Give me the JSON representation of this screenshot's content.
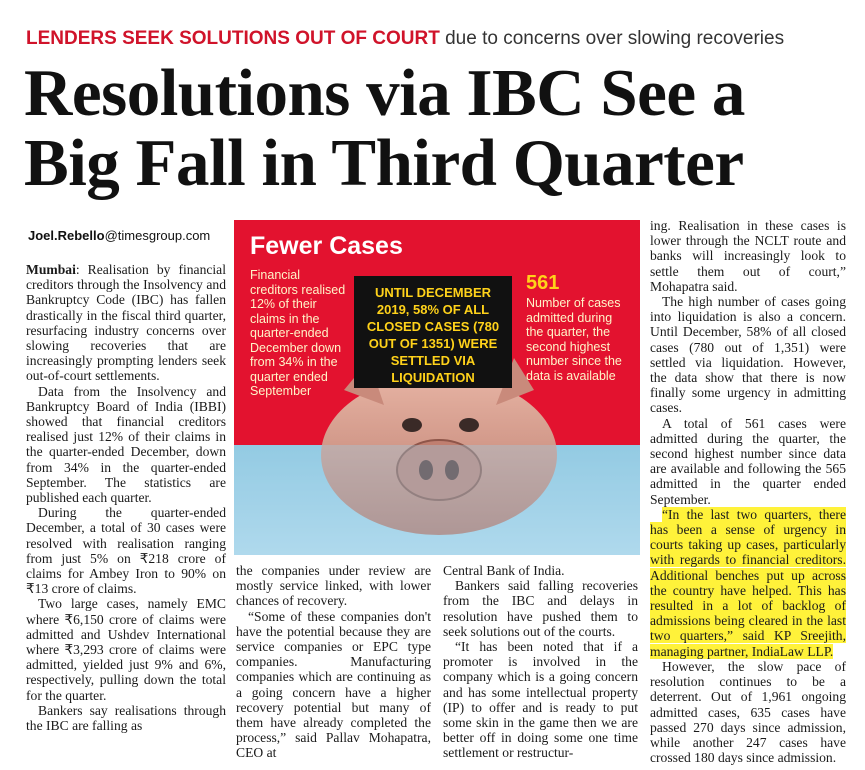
{
  "kicker": {
    "red": "LENDERS SEEK SOLUTIONS OUT OF COURT",
    "grey": "due to concerns over slowing recoveries"
  },
  "headline": "Resolutions via IBC See a Big Fall in Third Quarter",
  "byline": {
    "name": "Joel.Rebello",
    "domain": "@timesgroup.com"
  },
  "graphic": {
    "title": "Fewer Cases",
    "left_text": "Financial creditors realised 12% of their claims in the quarter-ended December down from 34% in the quarter ended September",
    "center_text": "UNTIL DECEMBER 2019, 58% OF ALL CLOSED CASES (780 OUT OF 1351) WERE SETTLED VIA LIQUIDATION",
    "right_number": "561",
    "right_text": "Number of cases admitted during the quarter, the second highest number since the data is available",
    "colors": {
      "red": "#e3122f",
      "yellow": "#ffd21a",
      "water": "#9fd1e8",
      "pig": "#d9a08e"
    },
    "illustration": "piggy-bank-sinking-in-water"
  },
  "col1": {
    "dateline": "Mumbai",
    "p1": ": Realisation by financial creditors through the Insolvency and Bankruptcy Code (IBC) has fallen drastically in the fiscal third quarter, resurfacing industry concerns over slowing recoveries that are increasingly prompting lenders seek out-of-court settlements.",
    "p2": "Data from the Insolvency and Bankruptcy Board of India (IBBI) showed that financial creditors realised just 12% of their claims in the quarter-ended December, down from 34% in the quarter-ended September. The statistics are published each quarter.",
    "p3": "During the quarter-ended December, a total of 30 cases were resolved with realisation ranging from just 5% on ₹218 crore of claims for Ambey Iron to 90% on ₹13 crore of claims.",
    "p4": "Two large cases, namely EMC where ₹6,150 crore of claims were admitted and Ushdev International where ₹3,293 crore of claims were admitted, yielded just 9% and 6%, respectively, pulling down the total for the quarter.",
    "p5": "Bankers say realisations through the IBC are falling as"
  },
  "col2": {
    "p1": "the companies under review are mostly service linked, with lower chances of recovery.",
    "p2": "“Some of these companies don't have the potential because they are service companies or EPC type companies. Manufacturing companies which are continuing as a going concern have a higher recovery potential but many of them have already completed the process,” said Pallav Mohapatra, CEO at"
  },
  "col3": {
    "p1": "Central Bank of India.",
    "p2": "Bankers said falling recoveries from the IBC and delays in resolution have pushed them to seek solutions out of the courts.",
    "p3": "“It has been noted that if a promoter is involved in the company which is a going concern and has some intellectual property (IP) to offer and is ready to put some skin in the game then we are better off in doing some one time settlement or restructur-"
  },
  "col4": {
    "p1": "ing. Realisation in these cases is lower through the NCLT route and banks will increasingly look to settle them out of court,” Mohapatra said.",
    "p2": "The high number of cases going into liquidation is also a concern. Until December, 58% of all closed cases (780 out of 1,351) were settled via liquidation. However, the data show that there is now finally some urgency in admitting cases.",
    "p3": "A total of 561 cases were admitted during the quarter, the second highest number since data are available and following the 565 admitted in the quarter ended September.",
    "p4": "“In the last two quarters, there has been a sense of urgency in courts taking up cases, particularly with regards to financial creditors. Additional benches put up across the country have helped. This has resulted in a lot of backlog of admissions being cleared in the last two quarters,” said KP Sreejith, managing partner, IndiaLaw LLP.",
    "p5": "However, the slow pace of resolution continues to be a deterrent. Out of 1,961 ongoing admitted cases, 635 cases have passed 270 days since admission, while another 247 cases have crossed 180 days since admission.",
    "highlight_color": "#fff23a"
  }
}
